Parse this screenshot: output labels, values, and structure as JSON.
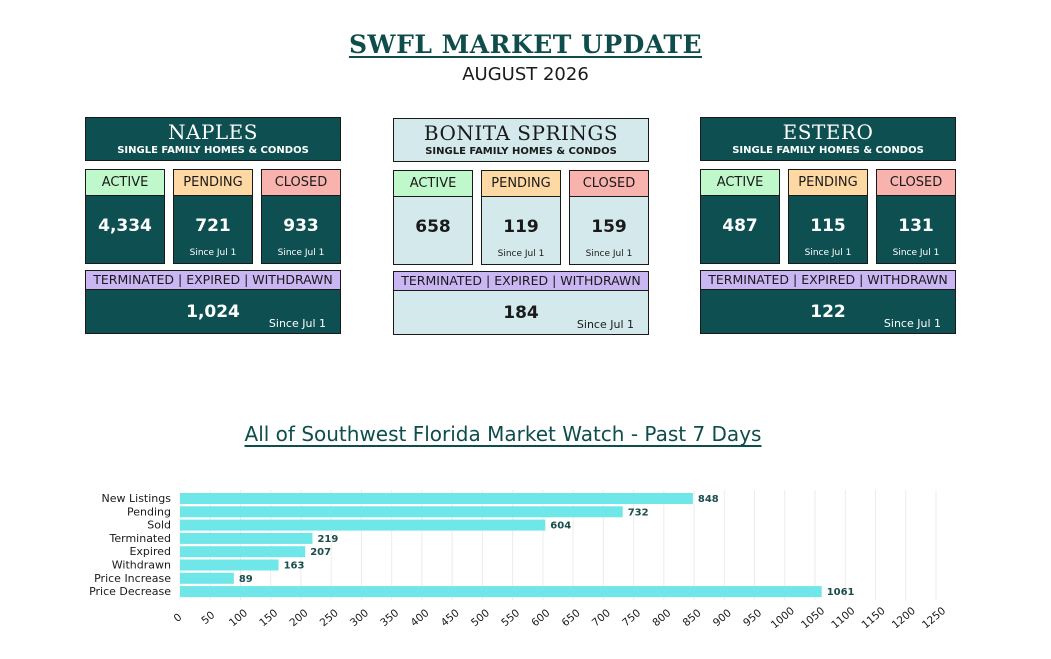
{
  "header": {
    "title": "SWFL MARKET UPDATE",
    "subtitle": "AUGUST 2026"
  },
  "colors": {
    "dark_teal": "#0e5052",
    "light_blue": "#d3e9ec",
    "active_green": "#bff8cb",
    "pending_orange": "#fed9a4",
    "closed_red": "#f9b3ae",
    "twlabel_purple": "#c9b6f2",
    "bar_cyan": "#6fe6e8"
  },
  "markets": [
    {
      "name": "NAPLES",
      "subtitle": "SINGLE FAMILY HOMES & CONDOS",
      "theme": "dark",
      "active_label": "ACTIVE",
      "active_value": "4,334",
      "pending_label": "PENDING",
      "pending_value": "721",
      "pending_since": "Since Jul 1",
      "closed_label": "CLOSED",
      "closed_value": "933",
      "closed_since": "Since Jul 1",
      "tw_label": "TERMINATED | EXPIRED | WITHDRAWN",
      "tw_value": "1,024",
      "tw_since": "Since Jul 1"
    },
    {
      "name": "BONITA SPRINGS",
      "subtitle": "SINGLE FAMILY HOMES & CONDOS",
      "theme": "light",
      "active_label": "ACTIVE",
      "active_value": "658",
      "pending_label": "PENDING",
      "pending_value": "119",
      "pending_since": "Since Jul 1",
      "closed_label": "CLOSED",
      "closed_value": "159",
      "closed_since": "Since Jul 1",
      "tw_label": "TERMINATED | EXPIRED | WITHDRAWN",
      "tw_value": "184",
      "tw_since": "Since Jul 1"
    },
    {
      "name": "ESTERO",
      "subtitle": "SINGLE FAMILY HOMES & CONDOS",
      "theme": "dark",
      "active_label": "ACTIVE",
      "active_value": "487",
      "pending_label": "PENDING",
      "pending_value": "115",
      "pending_since": "Since Jul 1",
      "closed_label": "CLOSED",
      "closed_value": "131",
      "closed_since": "Since Jul 1",
      "tw_label": "TERMINATED | EXPIRED | WITHDRAWN",
      "tw_value": "122",
      "tw_since": "Since Jul 1"
    }
  ],
  "chart_data": {
    "type": "bar",
    "orientation": "horizontal",
    "title": "All of Southwest Florida Market Watch - Past 7 Days",
    "categories": [
      "New Listings",
      "Pending",
      "Sold",
      "Terminated",
      "Expired",
      "Withdrawn",
      "Price Increase",
      "Price Decrease"
    ],
    "values": [
      848,
      732,
      604,
      219,
      207,
      163,
      89,
      1061
    ],
    "xlim": [
      0,
      1250
    ],
    "xticks": [
      0,
      50,
      100,
      150,
      200,
      250,
      300,
      350,
      400,
      450,
      500,
      550,
      600,
      650,
      700,
      750,
      800,
      850,
      900,
      950,
      1000,
      1050,
      1100,
      1150,
      1200,
      1250
    ],
    "grid": true,
    "data_labels": true,
    "legend": "none"
  }
}
